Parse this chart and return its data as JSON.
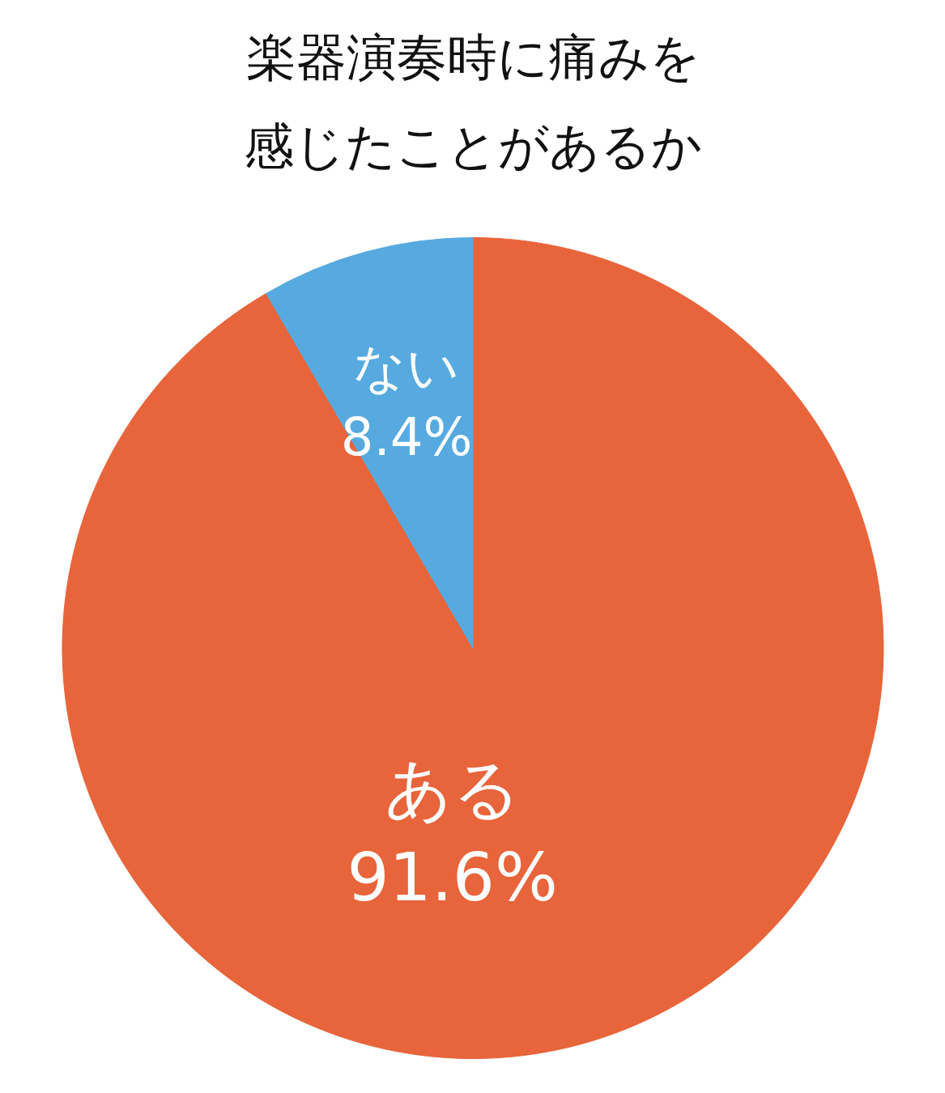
{
  "chart_data": {
    "type": "pie",
    "title": "楽器演奏時に痛みを感じたことがあるか",
    "categories": [
      "ある",
      "ない"
    ],
    "values": [
      91.6,
      8.4
    ],
    "colors": [
      "#e8643a",
      "#56aadf"
    ],
    "value_labels": [
      "91.6%",
      "8.4%"
    ]
  }
}
